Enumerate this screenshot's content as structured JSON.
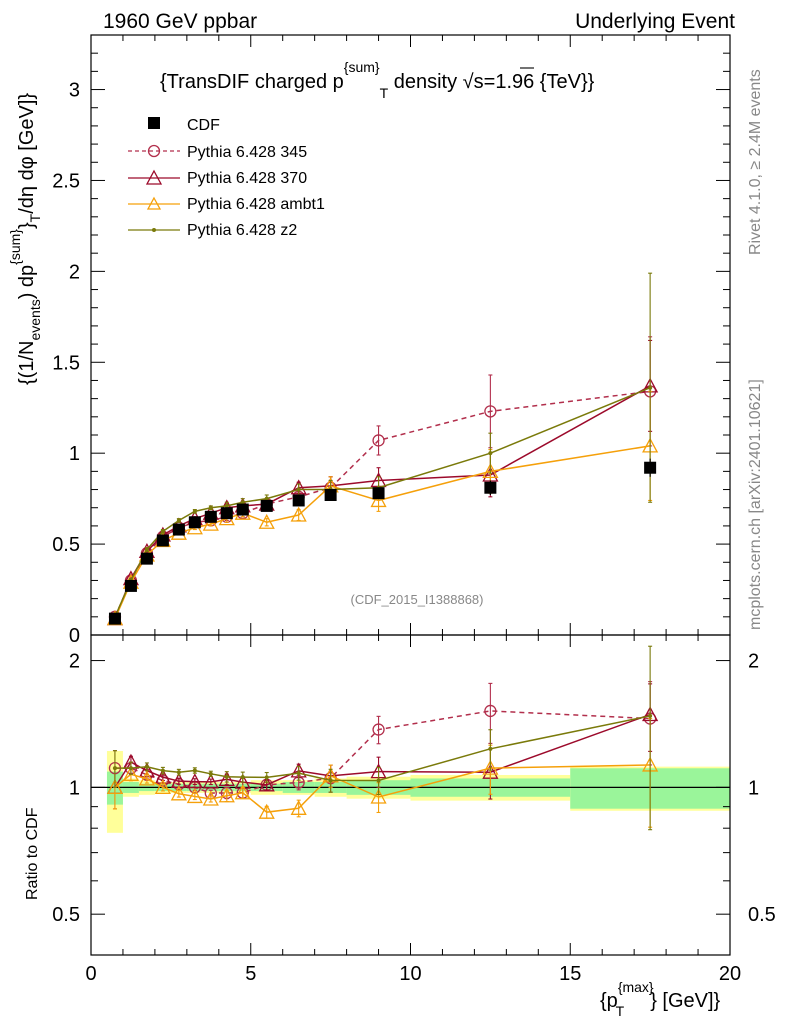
{
  "header": {
    "left": "1960 GeV ppbar",
    "right": "Underlying Event"
  },
  "side": {
    "rivet": "Rivet 4.1.0, ≥ 2.4M events",
    "mcplots": "mcplots.cern.ch [arXiv:2401.10621]"
  },
  "chart_data": {
    "type": "line",
    "title": "{TransDIF charged p{sum}T density √s=1.96 {TeV}}",
    "title_parts": {
      "a": "{TransDIF charged p",
      "sup": "{sum}",
      "sub": "T",
      "b": " density ",
      "sqrt": "√",
      "c": "s=1.96 {TeV}}"
    },
    "analysis_label": "(CDF_2015_I1388868)",
    "ylabel": "{(1/Nevents) dp{sum}T/dη dφ [GeV]}",
    "ylabel_parts": {
      "a": "{(1/N",
      "sub1": "events",
      "b": ") dp",
      "sup": "{sum}",
      "c": "}",
      "sub2": "T",
      "d": "/dη  dφ [GeV]}"
    },
    "xlabel": "{pT{max}} [GeV]}",
    "xlabel_parts": {
      "a": "{p",
      "sup": "{max}",
      "sub": "T",
      "b": "} [GeV]}"
    },
    "ratio_ylabel": "Ratio to CDF",
    "xlim": [
      0,
      20
    ],
    "ylim": [
      0,
      3.3
    ],
    "ratio_ylim": [
      0.4,
      2.3
    ],
    "x_ticks": [
      "0",
      "5",
      "10",
      "15",
      "20"
    ],
    "y_ticks": [
      "0",
      "0.5",
      "1",
      "1.5",
      "2",
      "2.5",
      "3"
    ],
    "ratio_ticks": [
      "0.5",
      "1",
      "2"
    ],
    "legend_position": "top-left",
    "x": [
      0.75,
      1.25,
      1.75,
      2.25,
      2.75,
      3.25,
      3.75,
      4.25,
      4.75,
      5.5,
      6.5,
      7.5,
      9.0,
      12.5,
      17.5
    ],
    "x_bins": [
      [
        0.5,
        1.0
      ],
      [
        1.0,
        1.5
      ],
      [
        1.5,
        2.0
      ],
      [
        2.0,
        2.5
      ],
      [
        2.5,
        3.0
      ],
      [
        3.0,
        3.5
      ],
      [
        3.5,
        4.0
      ],
      [
        4.0,
        4.5
      ],
      [
        4.5,
        5.0
      ],
      [
        5.0,
        6.0
      ],
      [
        6.0,
        7.0
      ],
      [
        7.0,
        8.0
      ],
      [
        8.0,
        10.0
      ],
      [
        10.0,
        15.0
      ],
      [
        15.0,
        20.0
      ]
    ],
    "cdf": {
      "name": "CDF",
      "values": [
        0.09,
        0.27,
        0.42,
        0.52,
        0.58,
        0.62,
        0.65,
        0.67,
        0.69,
        0.71,
        0.74,
        0.77,
        0.78,
        0.81,
        0.92
      ],
      "errors": [
        0.01,
        0.01,
        0.01,
        0.01,
        0.01,
        0.01,
        0.01,
        0.01,
        0.01,
        0.02,
        0.02,
        0.02,
        0.03,
        0.04,
        0.05
      ],
      "band_inner": [
        0.09,
        0.03,
        0.02,
        0.02,
        0.02,
        0.02,
        0.02,
        0.02,
        0.02,
        0.02,
        0.03,
        0.03,
        0.04,
        0.05,
        0.11
      ],
      "band_outer": [
        0.22,
        0.05,
        0.04,
        0.03,
        0.03,
        0.03,
        0.03,
        0.03,
        0.03,
        0.04,
        0.04,
        0.05,
        0.06,
        0.07,
        0.12
      ]
    },
    "series": [
      {
        "name": "Pythia 6.428 345",
        "color": "#b22f4c",
        "marker": "circle",
        "dashed": true,
        "values": [
          0.1,
          0.3,
          0.45,
          0.54,
          0.59,
          0.62,
          0.63,
          0.65,
          0.67,
          0.72,
          0.76,
          0.81,
          1.07,
          1.23,
          1.34
        ],
        "errors": [
          0.01,
          0.01,
          0.01,
          0.01,
          0.01,
          0.01,
          0.01,
          0.02,
          0.02,
          0.02,
          0.03,
          0.06,
          0.08,
          0.2,
          0.3
        ]
      },
      {
        "name": "Pythia 6.428 370",
        "color": "#9c0a2b",
        "marker": "triangle",
        "dashed": false,
        "values": [
          0.09,
          0.31,
          0.46,
          0.55,
          0.6,
          0.64,
          0.67,
          0.7,
          0.71,
          0.72,
          0.81,
          0.82,
          0.85,
          0.88,
          1.37
        ],
        "errors": [
          0.01,
          0.01,
          0.01,
          0.01,
          0.01,
          0.01,
          0.01,
          0.02,
          0.02,
          0.02,
          0.03,
          0.05,
          0.07,
          0.12,
          0.25
        ]
      },
      {
        "name": "Pythia 6.428 ambt1",
        "color": "#f5a00a",
        "marker": "triangle",
        "dashed": false,
        "values": [
          0.09,
          0.29,
          0.44,
          0.52,
          0.56,
          0.59,
          0.61,
          0.64,
          0.67,
          0.62,
          0.66,
          0.82,
          0.74,
          0.9,
          1.04
        ],
        "errors": [
          0.01,
          0.01,
          0.01,
          0.01,
          0.01,
          0.01,
          0.01,
          0.02,
          0.02,
          0.02,
          0.03,
          0.05,
          0.06,
          0.12,
          0.3
        ]
      },
      {
        "name": "Pythia 6.428 z2",
        "color": "#7a7a0a",
        "marker": "dot",
        "dashed": false,
        "values": [
          0.1,
          0.3,
          0.47,
          0.57,
          0.63,
          0.68,
          0.7,
          0.71,
          0.73,
          0.75,
          0.8,
          0.8,
          0.81,
          1.0,
          1.36
        ],
        "errors": [
          0.01,
          0.01,
          0.01,
          0.01,
          0.01,
          0.01,
          0.01,
          0.02,
          0.02,
          0.02,
          0.03,
          0.05,
          0.06,
          0.11,
          0.63
        ]
      }
    ]
  }
}
